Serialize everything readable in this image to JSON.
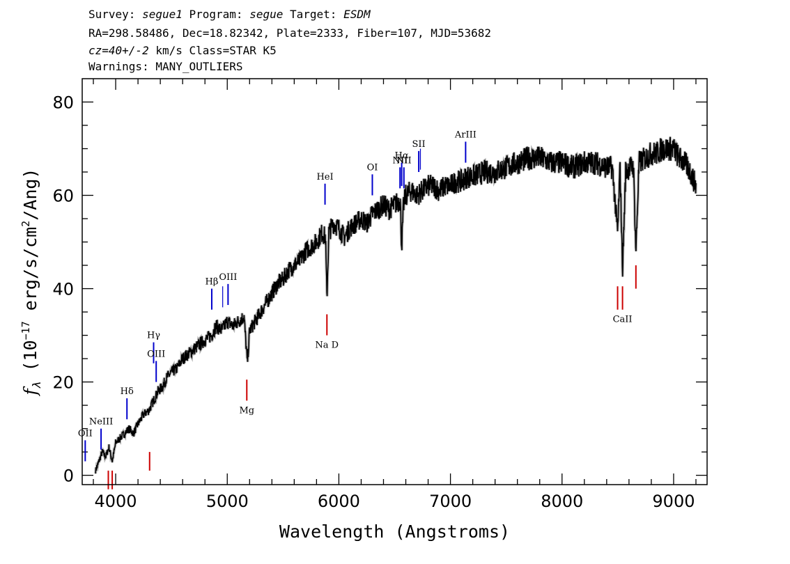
{
  "header": {
    "line1": {
      "survey_label": "Survey: ",
      "survey": "segue1",
      "program_label": " Program: ",
      "program": "segue",
      "target_label": " Target: ",
      "target": "ESDM"
    },
    "line2": "RA=298.58486, Dec=18.82342, Plate=2333, Fiber=107, MJD=53682",
    "line3": {
      "cz": "cz=40+/-2",
      "rest": " km/s Class=STAR K5"
    },
    "line4": "Warnings: MANY_OUTLIERS"
  },
  "chart_data": {
    "type": "line",
    "xlabel": "Wavelength (Angstroms)",
    "ylabel": "f_λ (10^-17 erg/s/cm^2/Ang)",
    "ylabel_parts": {
      "f": "f",
      "lambda": "λ",
      "open": " (10",
      "exp1": "−17",
      "mid": " erg/s/cm",
      "exp2": "2",
      "close": "/Ang)"
    },
    "xlim": [
      3700,
      9300
    ],
    "ylim": [
      -2,
      85
    ],
    "x_ticks": [
      4000,
      5000,
      6000,
      7000,
      8000,
      9000
    ],
    "y_ticks": [
      0,
      20,
      40,
      60,
      80
    ],
    "grid": false,
    "series": [
      {
        "x": [
          3820,
          3850,
          3880,
          3910,
          3940,
          3970,
          4000,
          4040,
          4080,
          4120,
          4160,
          4200,
          4250,
          4300,
          4340,
          4380,
          4420,
          4460,
          4500,
          4550,
          4600,
          4650,
          4700,
          4750,
          4800,
          4860,
          4900,
          4950,
          5000,
          5050,
          5100,
          5150,
          5180,
          5200,
          5250,
          5300,
          5350,
          5400,
          5450,
          5500,
          5550,
          5600,
          5650,
          5700,
          5750,
          5800,
          5850,
          5880,
          5893,
          5910,
          5950,
          6000,
          6050,
          6100,
          6150,
          6200,
          6250,
          6300,
          6350,
          6400,
          6450,
          6500,
          6550,
          6563,
          6580,
          6600,
          6650,
          6700,
          6750,
          6800,
          6850,
          6900,
          6950,
          7000,
          7050,
          7100,
          7150,
          7200,
          7300,
          7400,
          7500,
          7600,
          7700,
          7800,
          7900,
          8000,
          8100,
          8200,
          8300,
          8400,
          8450,
          8498,
          8520,
          8542,
          8570,
          8600,
          8640,
          8662,
          8690,
          8750,
          8800,
          8850,
          8900,
          8950,
          9000,
          9050,
          9100,
          9150,
          9200
        ],
        "y": [
          1,
          3,
          5,
          4,
          6,
          3,
          7,
          8,
          9,
          10,
          9,
          11,
          13,
          14,
          16,
          18,
          19,
          21,
          22,
          23,
          25,
          26,
          27,
          28,
          29,
          30,
          32,
          31,
          33,
          32,
          33,
          34,
          24,
          31,
          33,
          35,
          37,
          39,
          41,
          42,
          44,
          45,
          46,
          48,
          49,
          50,
          52,
          51,
          38,
          52,
          54,
          53,
          51,
          53,
          54,
          55,
          54,
          56,
          57,
          58,
          57,
          58,
          59,
          49,
          58,
          60,
          61,
          60,
          61,
          62,
          62,
          61,
          62,
          62,
          63,
          63,
          64,
          64,
          65,
          65,
          66,
          67,
          68,
          68,
          67,
          67,
          66,
          67,
          67,
          66,
          66,
          52,
          66,
          44,
          65,
          66,
          66,
          48,
          67,
          68,
          69,
          69,
          70,
          70,
          70,
          68,
          67,
          65,
          62
        ]
      }
    ],
    "annotations": [
      {
        "name": "oii",
        "label": "OII",
        "wavelength": 3727,
        "color": "#0000cc",
        "y_bottom": 3,
        "y_top": 7.5
      },
      {
        "name": "neiii",
        "label": "NeIII",
        "wavelength": 3869,
        "color": "#0000cc",
        "y_bottom": 5.5,
        "y_top": 10
      },
      {
        "name": "h-delta",
        "label": "Hδ",
        "wavelength": 4101,
        "color": "#0000cc",
        "y_bottom": 12,
        "y_top": 16.5
      },
      {
        "name": "h-gamma",
        "label": "Hγ",
        "wavelength": 4340,
        "color": "#0000cc",
        "y_bottom": 24,
        "y_top": 28.5
      },
      {
        "name": "oiii-4363",
        "label": "OIII",
        "wavelength": 4363,
        "color": "#0000cc",
        "y_bottom": 20,
        "y_top": 24.5
      },
      {
        "name": "h-beta",
        "label": "Hβ",
        "wavelength": 4861,
        "color": "#0000cc",
        "y_bottom": 35.5,
        "y_top": 40
      },
      {
        "name": "oiii-4959",
        "label": "",
        "wavelength": 4959,
        "color": "#0000cc",
        "y_bottom": 36,
        "y_top": 40.5
      },
      {
        "name": "oiii-5007",
        "label": "OIII",
        "wavelength": 5007,
        "color": "#0000cc",
        "y_bottom": 36.5,
        "y_top": 41
      },
      {
        "name": "hei",
        "label": "HeI",
        "wavelength": 5876,
        "color": "#0000cc",
        "y_bottom": 58,
        "y_top": 62.5
      },
      {
        "name": "oi",
        "label": "OI",
        "wavelength": 6300,
        "color": "#0000cc",
        "y_bottom": 60,
        "y_top": 64.5
      },
      {
        "name": "nii-6548",
        "label": "NII",
        "wavelength": 6548,
        "color": "#0000cc",
        "y_bottom": 61.5,
        "y_top": 66
      },
      {
        "name": "h-alpha",
        "label": "Hα",
        "wavelength": 6563,
        "color": "#0000cc",
        "y_bottom": 62,
        "y_top": 67
      },
      {
        "name": "nii-6583",
        "label": "NII",
        "wavelength": 6583,
        "color": "#0000cc",
        "y_bottom": 61.5,
        "y_top": 66
      },
      {
        "name": "sii-6716",
        "label": "SII",
        "wavelength": 6716,
        "color": "#0000cc",
        "y_bottom": 65,
        "y_top": 69.5
      },
      {
        "name": "sii-6731",
        "label": "",
        "wavelength": 6731,
        "color": "#0000cc",
        "y_bottom": 65.5,
        "y_top": 70
      },
      {
        "name": "ariii",
        "label": "ArIII",
        "wavelength": 7136,
        "color": "#0000cc",
        "y_bottom": 67,
        "y_top": 71.5
      },
      {
        "name": "ca-k",
        "label": "",
        "wavelength": 3934,
        "color": "#cc0000",
        "y_bottom": -3,
        "y_top": 1
      },
      {
        "name": "ca-h",
        "label": "",
        "wavelength": 3969,
        "color": "#cc0000",
        "y_bottom": -3,
        "y_top": 1
      },
      {
        "name": "g-band",
        "label": "",
        "wavelength": 4304,
        "color": "#cc0000",
        "y_bottom": 1,
        "y_top": 5
      },
      {
        "name": "mg",
        "label": "Mg",
        "wavelength": 5175,
        "color": "#cc0000",
        "y_bottom": 16,
        "y_top": 20.5
      },
      {
        "name": "na-d",
        "label": "Na D",
        "wavelength": 5893,
        "color": "#cc0000",
        "y_bottom": 30,
        "y_top": 34.5
      },
      {
        "name": "caii-8498",
        "label": "",
        "wavelength": 8498,
        "color": "#cc0000",
        "y_bottom": 35.5,
        "y_top": 40.5
      },
      {
        "name": "caii-8542",
        "label": "CaII",
        "wavelength": 8542,
        "color": "#cc0000",
        "y_bottom": 35.5,
        "y_top": 40.5
      },
      {
        "name": "caii-8662",
        "label": "",
        "wavelength": 8662,
        "color": "#cc0000",
        "y_bottom": 40,
        "y_top": 45
      }
    ]
  }
}
